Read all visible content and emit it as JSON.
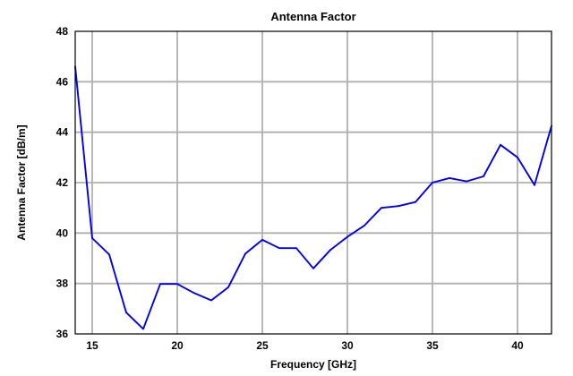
{
  "chart_data": {
    "type": "line",
    "title": "Antenna Factor",
    "xlabel": "Frequency [GHz]",
    "ylabel": "Antenna Factor [dB/m]",
    "xlim": [
      14,
      42
    ],
    "ylim": [
      36,
      48
    ],
    "xticks": [
      15,
      20,
      25,
      30,
      35,
      40
    ],
    "yticks": [
      36,
      38,
      40,
      42,
      44,
      46,
      48
    ],
    "grid": true,
    "series": [
      {
        "color": "#0000ee",
        "x": [
          14,
          15,
          16,
          17,
          18,
          19,
          20,
          21,
          22,
          23,
          24,
          25,
          26,
          27,
          28,
          29,
          30,
          31,
          32,
          33,
          34,
          35,
          36,
          37,
          38,
          39,
          40,
          41,
          42
        ],
        "y": [
          46.6,
          39.8,
          39.15,
          36.85,
          36.2,
          37.98,
          37.98,
          37.62,
          37.33,
          37.85,
          39.18,
          39.73,
          39.4,
          39.4,
          38.6,
          39.33,
          39.85,
          40.3,
          41.0,
          41.07,
          41.23,
          42.0,
          42.18,
          42.05,
          42.25,
          43.5,
          43.0,
          41.9,
          44.25
        ]
      }
    ]
  }
}
